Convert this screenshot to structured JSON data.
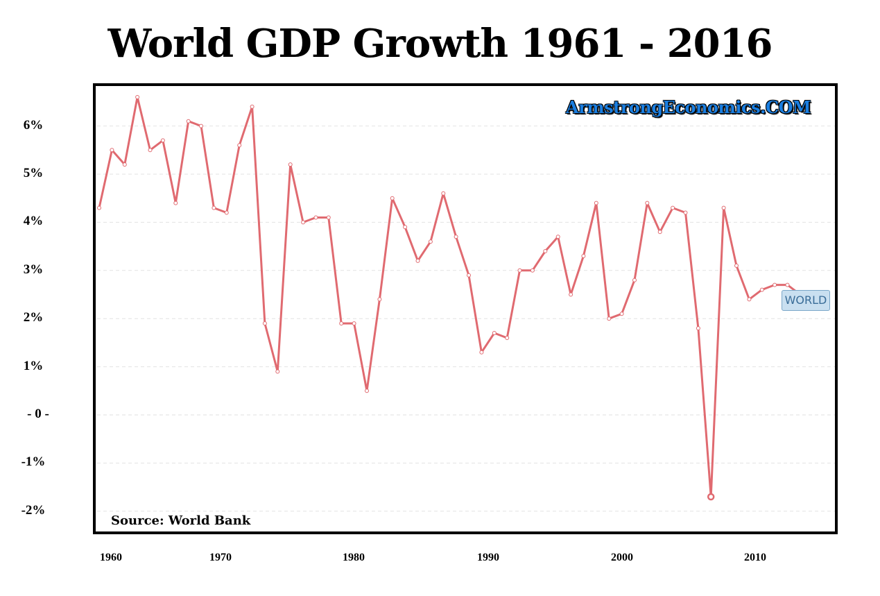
{
  "chart_data": {
    "type": "line",
    "title": "World GDP Growth 1961 - 2016",
    "xlabel": "",
    "ylabel": "",
    "brand": "ArmstrongEconomics.COM",
    "source": "Source: World Bank",
    "series_label": "WORLD",
    "y_ticks": [
      {
        "value": 6,
        "label": "6%"
      },
      {
        "value": 5,
        "label": "5%"
      },
      {
        "value": 4,
        "label": "4%"
      },
      {
        "value": 3,
        "label": "3%"
      },
      {
        "value": 2,
        "label": "2%"
      },
      {
        "value": 1,
        "label": "1%"
      },
      {
        "value": 0,
        "label": "- 0 -"
      },
      {
        "value": -1,
        "label": "-1%"
      },
      {
        "value": -2,
        "label": "-2%"
      }
    ],
    "x_ticks": [
      1960,
      1970,
      1980,
      1990,
      2000,
      2010
    ],
    "ylim": [
      -2.1,
      6.9
    ],
    "xlim": [
      1960,
      2016.5
    ],
    "grid": true,
    "color": "#e06a70",
    "series": [
      {
        "x": [
          1961,
          1962,
          1963,
          1964,
          1965,
          1966,
          1967,
          1968,
          1969,
          1970,
          1971,
          1972,
          1973,
          1974,
          1975,
          1976,
          1977,
          1978,
          1979,
          1980,
          1981,
          1982,
          1983,
          1984,
          1985,
          1986,
          1987,
          1988,
          1989,
          1990,
          1991,
          1992,
          1993,
          1994,
          1995,
          1996,
          1997,
          1998,
          1999,
          2000,
          2001,
          2002,
          2003,
          2004,
          2005,
          2006,
          2007,
          2008,
          2009,
          2010,
          2011,
          2012,
          2013,
          2014,
          2015,
          2016
        ],
        "values": [
          4.3,
          5.5,
          5.2,
          6.6,
          5.5,
          5.7,
          4.4,
          6.1,
          6.0,
          4.3,
          4.2,
          5.6,
          6.4,
          1.9,
          0.9,
          5.2,
          4.0,
          4.1,
          4.1,
          1.9,
          1.9,
          0.5,
          2.4,
          4.5,
          3.9,
          3.2,
          3.6,
          4.6,
          3.7,
          2.9,
          1.3,
          1.7,
          1.6,
          3.0,
          3.0,
          3.4,
          3.7,
          2.5,
          3.3,
          4.4,
          2.0,
          2.1,
          2.8,
          4.4,
          3.8,
          4.3,
          4.2,
          1.8,
          -1.7,
          4.3,
          3.1,
          2.4,
          2.6,
          2.7,
          2.7,
          2.5
        ]
      }
    ]
  }
}
